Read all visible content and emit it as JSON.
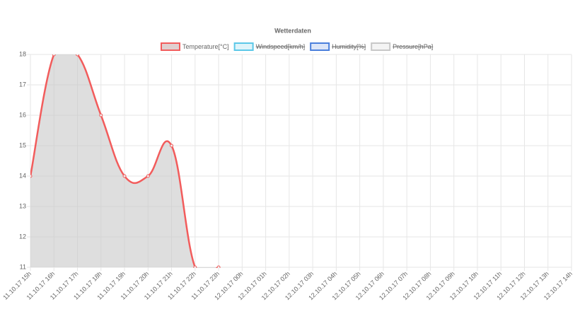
{
  "chart_data": {
    "type": "line",
    "title": "Wetterdaten",
    "categories": [
      "11.10.17 15h",
      "11.10.17 16h",
      "11.10.17 17h",
      "11.10.17 18h",
      "11.10.17 19h",
      "11.10.17 20h",
      "11.10.17 21h",
      "11.10.17 22h",
      "11.10.17 23h",
      "12.10.17 00h",
      "12.10.17 01h",
      "12.10.17 02h",
      "12.10.17 03h",
      "12.10.17 04h",
      "12.10.17 05h",
      "12.10.17 06h",
      "12.10.17 07h",
      "12.10.17 08h",
      "12.10.17 09h",
      "12.10.17 10h",
      "12.10.17 11h",
      "12.10.17 12h",
      "12.10.17 13h",
      "12.10.17 14h"
    ],
    "series": [
      {
        "name": "Temperature[°C]",
        "color": "#f25c5c",
        "values": [
          14,
          18,
          18,
          16,
          14,
          14,
          15,
          11,
          11,
          null,
          null,
          null,
          null,
          null,
          null,
          null,
          null,
          null,
          null,
          null,
          null,
          null,
          null,
          null
        ]
      },
      {
        "name": "Windspeed[km/h]",
        "color": "#5bc8e8",
        "hidden": true
      },
      {
        "name": "Humidity[%]",
        "color": "#4a7fdc",
        "hidden": true
      },
      {
        "name": "Pressure[hPa]",
        "color": "#c8c8c8",
        "hidden": true
      }
    ],
    "ylim": [
      11,
      18
    ],
    "yticks": [
      11,
      12,
      13,
      14,
      15,
      16,
      17,
      18
    ],
    "grid": true
  }
}
